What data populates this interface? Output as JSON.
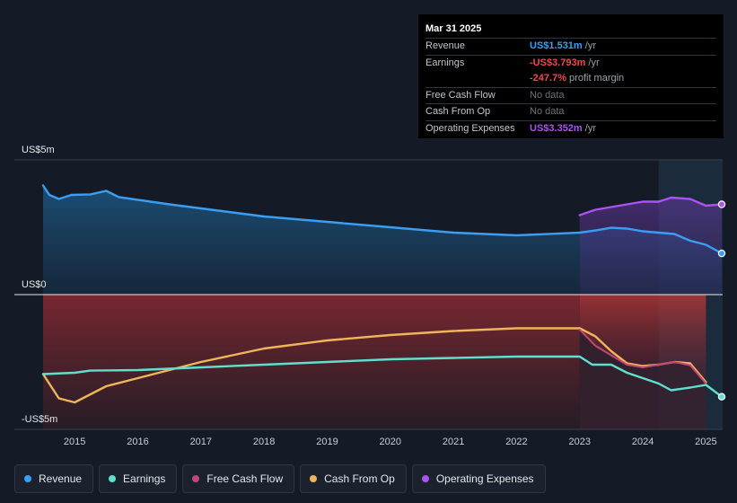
{
  "tooltip": {
    "date": "Mar 31 2025",
    "rows": [
      {
        "label": "Revenue",
        "value": "US$1.531m",
        "unit": " /yr"
      },
      {
        "label": "Earnings",
        "value": "-US$3.793m",
        "unit": " /yr"
      },
      {
        "label": "",
        "value": "-247.7%",
        "unit": " profit margin"
      },
      {
        "label": "Free Cash Flow",
        "value": "No data",
        "unit": ""
      },
      {
        "label": "Cash From Op",
        "value": "No data",
        "unit": ""
      },
      {
        "label": "Operating Expenses",
        "value": "US$3.352m",
        "unit": " /yr"
      }
    ]
  },
  "legend": [
    {
      "label": "Revenue",
      "color": "#3a9ef5"
    },
    {
      "label": "Earnings",
      "color": "#5fe0cf"
    },
    {
      "label": "Free Cash Flow",
      "color": "#c4457a"
    },
    {
      "label": "Cash From Op",
      "color": "#f0b45a"
    },
    {
      "label": "Operating Expenses",
      "color": "#a952f5"
    }
  ],
  "chart_data": {
    "type": "line",
    "y_labels": [
      "US$5m",
      "US$0",
      "-US$5m"
    ],
    "ylim": [
      -5,
      5
    ],
    "xlim": [
      2014.5,
      2025.25
    ],
    "x_ticks": [
      "2015",
      "2016",
      "2017",
      "2018",
      "2019",
      "2020",
      "2021",
      "2022",
      "2023",
      "2024",
      "2025"
    ],
    "highlight_start": 2024.25,
    "series": [
      {
        "name": "Revenue",
        "color": "#3a9ef5",
        "fill": "above",
        "points": [
          [
            2014.5,
            4.05
          ],
          [
            2014.6,
            3.7
          ],
          [
            2014.75,
            3.55
          ],
          [
            2014.95,
            3.7
          ],
          [
            2015.25,
            3.72
          ],
          [
            2015.5,
            3.85
          ],
          [
            2015.7,
            3.62
          ],
          [
            2016.5,
            3.35
          ],
          [
            2018,
            2.9
          ],
          [
            2020,
            2.5
          ],
          [
            2021,
            2.3
          ],
          [
            2022,
            2.2
          ],
          [
            2023,
            2.3
          ],
          [
            2023.25,
            2.38
          ],
          [
            2023.5,
            2.48
          ],
          [
            2023.75,
            2.45
          ],
          [
            2024,
            2.35
          ],
          [
            2024.25,
            2.3
          ],
          [
            2024.5,
            2.25
          ],
          [
            2024.75,
            2.0
          ],
          [
            2025.0,
            1.85
          ],
          [
            2025.25,
            1.53
          ]
        ]
      },
      {
        "name": "Earnings",
        "color": "#5fe0cf",
        "points": [
          [
            2014.5,
            -2.95
          ],
          [
            2015,
            -2.9
          ],
          [
            2015.25,
            -2.82
          ],
          [
            2016,
            -2.8
          ],
          [
            2017,
            -2.7
          ],
          [
            2018,
            -2.6
          ],
          [
            2019,
            -2.5
          ],
          [
            2020,
            -2.4
          ],
          [
            2021,
            -2.35
          ],
          [
            2022,
            -2.3
          ],
          [
            2023,
            -2.3
          ],
          [
            2023.2,
            -2.6
          ],
          [
            2023.5,
            -2.6
          ],
          [
            2023.75,
            -2.9
          ],
          [
            2024,
            -3.1
          ],
          [
            2024.25,
            -3.3
          ],
          [
            2024.45,
            -3.55
          ],
          [
            2024.75,
            -3.45
          ],
          [
            2025.0,
            -3.35
          ],
          [
            2025.25,
            -3.79
          ]
        ]
      },
      {
        "name": "Free Cash Flow",
        "color": "#c4457a",
        "fill": "below",
        "points": [
          [
            2014.5,
            0.0
          ],
          [
            2023.0,
            0.0
          ],
          [
            2023.0,
            -1.3
          ],
          [
            2023.25,
            -1.9
          ],
          [
            2023.5,
            -2.25
          ],
          [
            2023.75,
            -2.6
          ],
          [
            2024,
            -2.7
          ],
          [
            2024.25,
            -2.6
          ],
          [
            2024.5,
            -2.5
          ],
          [
            2024.75,
            -2.62
          ],
          [
            2025.0,
            -3.3
          ]
        ]
      },
      {
        "name": "Cash From Op",
        "color": "#f0b45a",
        "fill": "below",
        "points": [
          [
            2014.5,
            -2.95
          ],
          [
            2014.75,
            -3.85
          ],
          [
            2015.0,
            -4.0
          ],
          [
            2015.5,
            -3.4
          ],
          [
            2016,
            -3.1
          ],
          [
            2017,
            -2.5
          ],
          [
            2018,
            -2.0
          ],
          [
            2019,
            -1.7
          ],
          [
            2020,
            -1.5
          ],
          [
            2021,
            -1.35
          ],
          [
            2022,
            -1.25
          ],
          [
            2023,
            -1.25
          ],
          [
            2023.25,
            -1.55
          ],
          [
            2023.5,
            -2.1
          ],
          [
            2023.75,
            -2.55
          ],
          [
            2024,
            -2.65
          ],
          [
            2024.25,
            -2.6
          ],
          [
            2024.5,
            -2.5
          ],
          [
            2024.75,
            -2.55
          ],
          [
            2025.0,
            -3.25
          ]
        ]
      },
      {
        "name": "Operating Expenses",
        "color": "#a952f5",
        "fill": "above",
        "points": [
          [
            2023.0,
            2.95
          ],
          [
            2023.25,
            3.15
          ],
          [
            2023.5,
            3.25
          ],
          [
            2023.75,
            3.35
          ],
          [
            2024,
            3.45
          ],
          [
            2024.25,
            3.45
          ],
          [
            2024.45,
            3.6
          ],
          [
            2024.75,
            3.55
          ],
          [
            2025.0,
            3.3
          ],
          [
            2025.25,
            3.35
          ]
        ]
      }
    ]
  }
}
